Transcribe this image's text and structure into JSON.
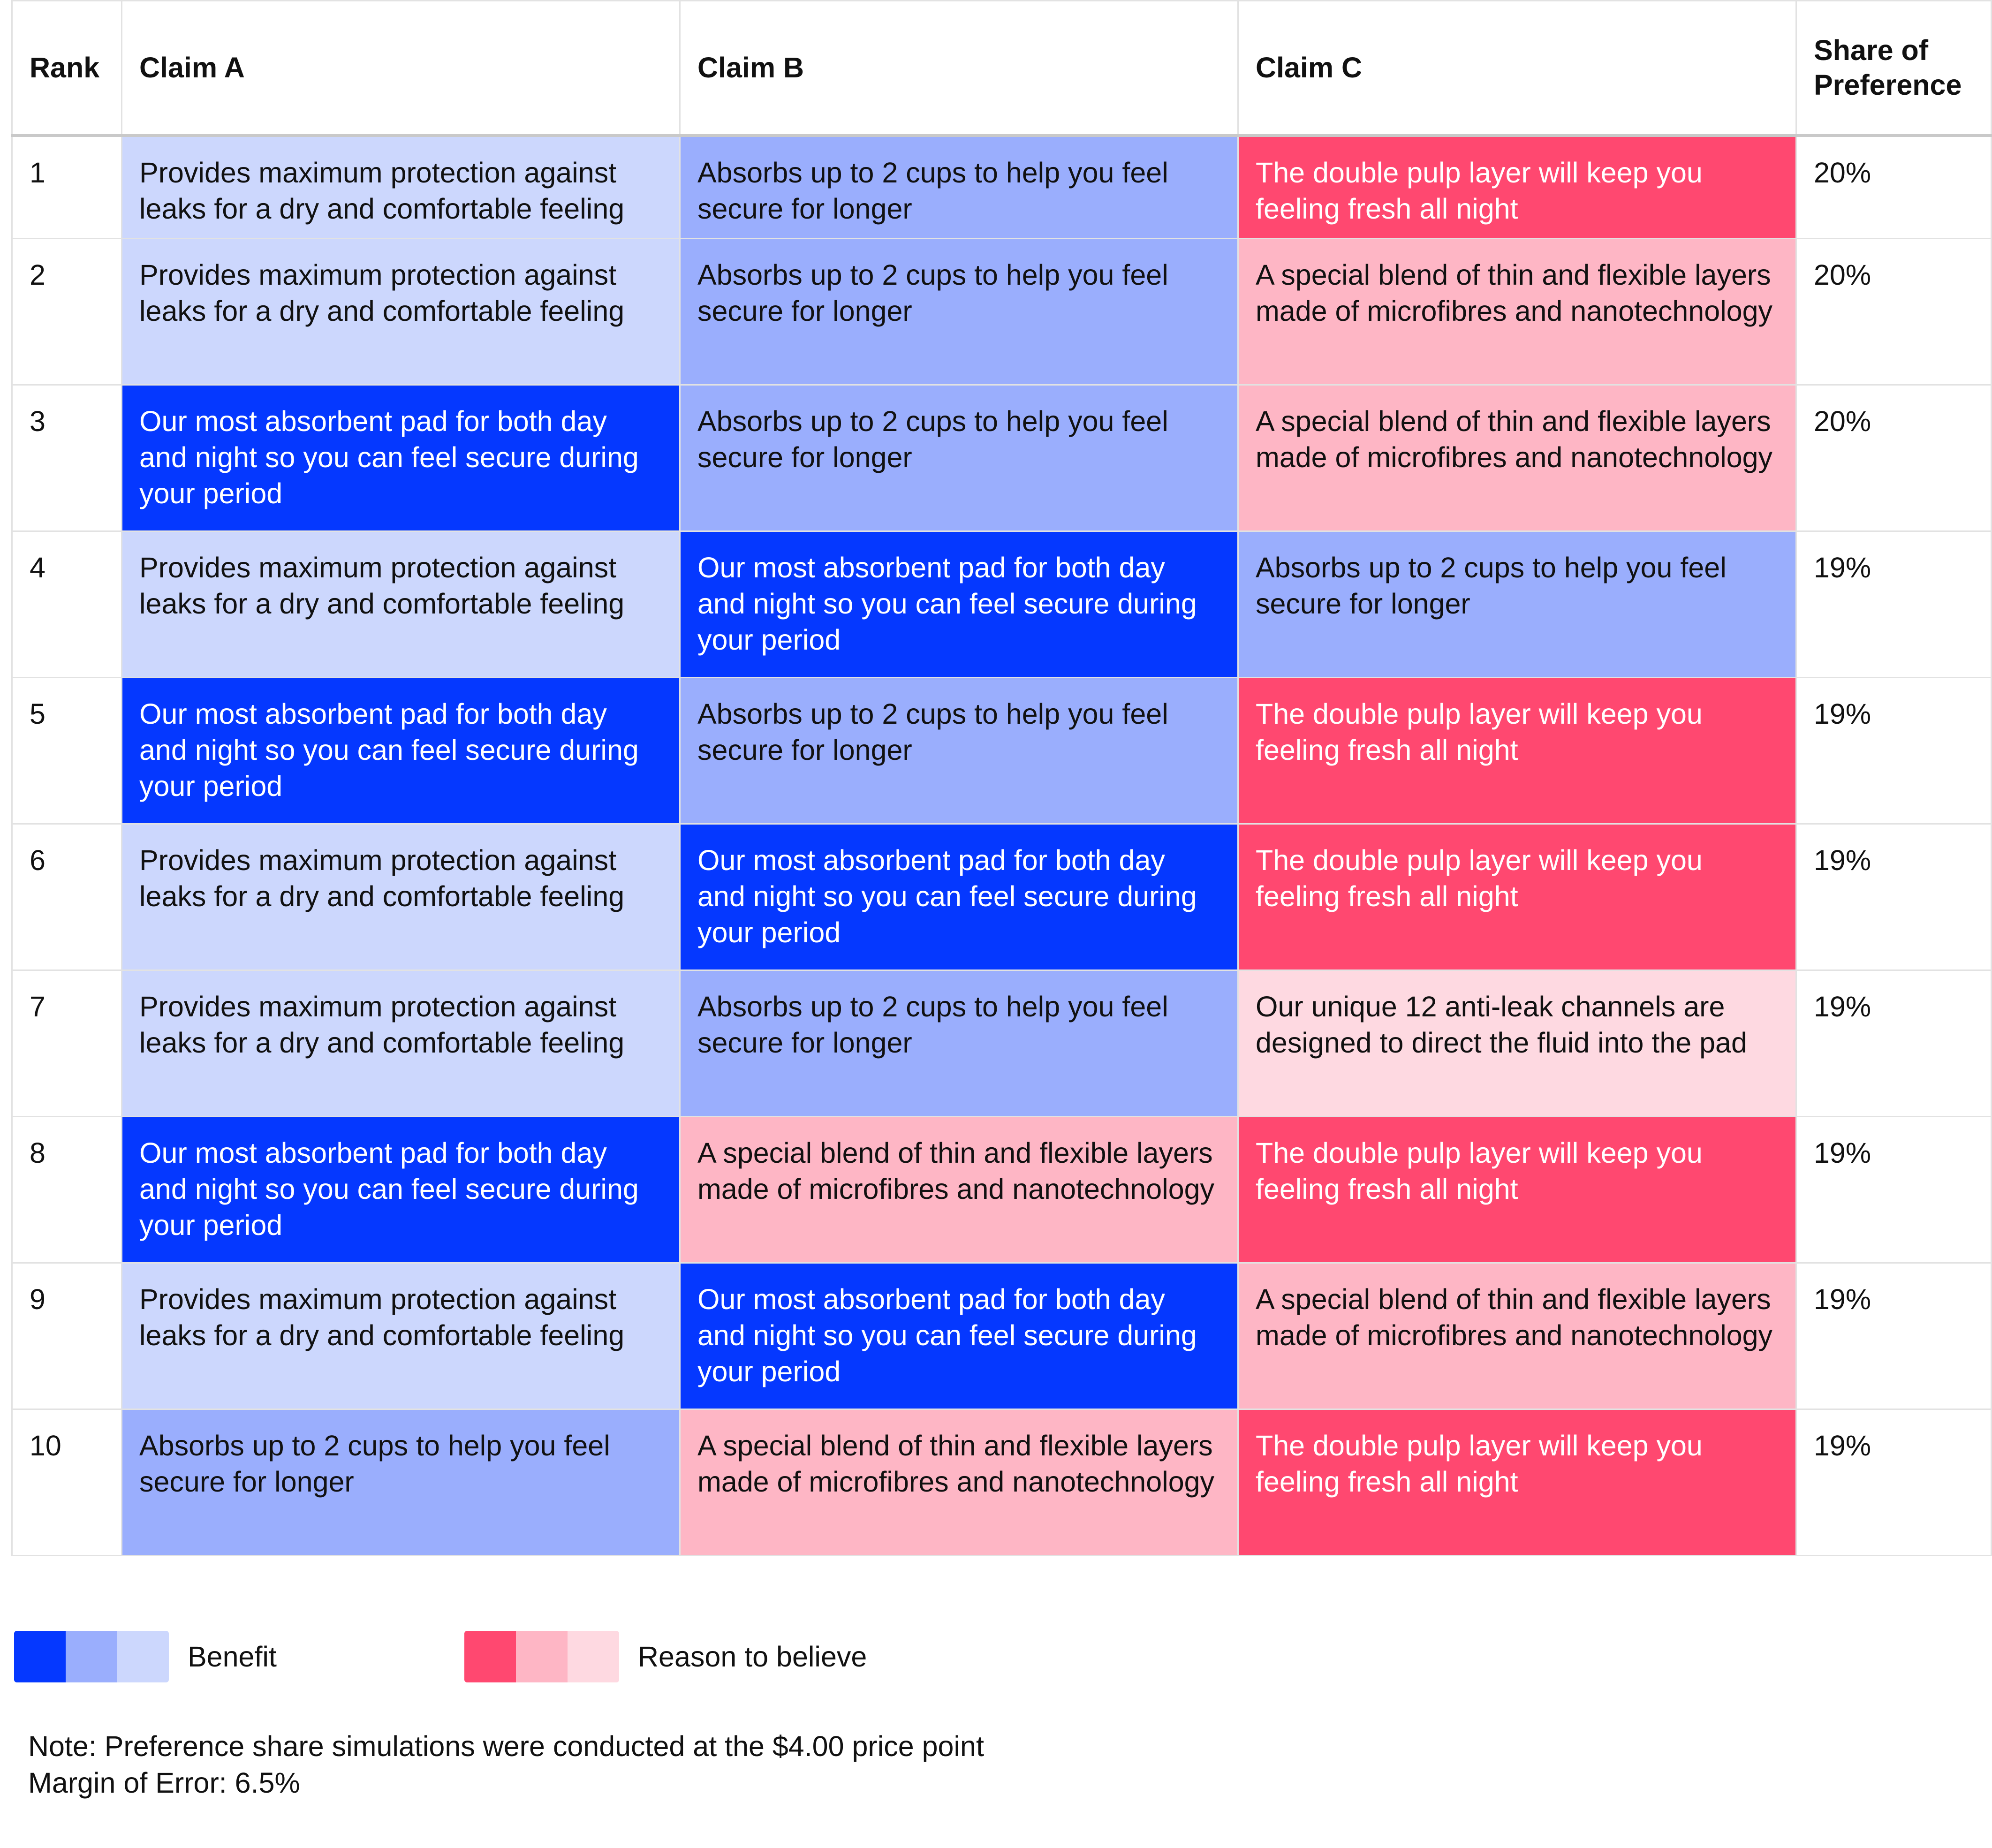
{
  "chart_data": {
    "type": "table",
    "columns": [
      "Rank",
      "Claim A",
      "Claim B",
      "Claim C",
      "Share of Preference"
    ],
    "colors": {
      "benefit_dark": "#0538FF",
      "benefit_mid": "#9AAEFD",
      "benefit_light": "#CCD7FD",
      "rtb_dark": "#FF4870",
      "rtb_mid": "#FEB6C5",
      "rtb_light": "#FED9E1"
    },
    "rows": [
      {
        "rank": "1",
        "share": "20%",
        "cells": [
          {
            "text": "Provides maximum protection against leaks for a dry and comfortable feeling",
            "color": "#CCD7FD",
            "text_color": "#111111"
          },
          {
            "text": "Absorbs up to 2 cups to help you feel secure for longer",
            "color": "#9AAEFD",
            "text_color": "#111111"
          },
          {
            "text": "The double pulp layer will keep you feeling fresh all night",
            "color": "#FF4870",
            "text_color": "#ffffff"
          }
        ]
      },
      {
        "rank": "2",
        "share": "20%",
        "cells": [
          {
            "text": "Provides maximum protection against leaks for a dry and comfortable feeling",
            "color": "#CCD7FD",
            "text_color": "#111111"
          },
          {
            "text": "Absorbs up to 2 cups to help you feel secure for longer",
            "color": "#9AAEFD",
            "text_color": "#111111"
          },
          {
            "text": "A special blend of thin and flexible layers made of microfibres and nanotechnology",
            "color": "#FEB6C5",
            "text_color": "#111111"
          }
        ]
      },
      {
        "rank": "3",
        "share": "20%",
        "cells": [
          {
            "text": "Our most absorbent pad for both day and night so you can feel secure during your period",
            "color": "#0538FF",
            "text_color": "#ffffff"
          },
          {
            "text": "Absorbs up to 2 cups to help you feel secure for longer",
            "color": "#9AAEFD",
            "text_color": "#111111"
          },
          {
            "text": "A special blend of thin and flexible layers made of microfibres and nanotechnology",
            "color": "#FEB6C5",
            "text_color": "#111111"
          }
        ]
      },
      {
        "rank": "4",
        "share": "19%",
        "cells": [
          {
            "text": "Provides maximum protection against leaks for a dry and comfortable feeling",
            "color": "#CCD7FD",
            "text_color": "#111111"
          },
          {
            "text": "Our most absorbent pad for both day and night so you can feel secure during your period",
            "color": "#0538FF",
            "text_color": "#ffffff"
          },
          {
            "text": "Absorbs up to 2 cups to help you feel secure for longer",
            "color": "#9AAEFD",
            "text_color": "#111111"
          }
        ]
      },
      {
        "rank": "5",
        "share": "19%",
        "cells": [
          {
            "text": "Our most absorbent pad for both day and night so you can feel secure during your period",
            "color": "#0538FF",
            "text_color": "#ffffff"
          },
          {
            "text": "Absorbs up to 2 cups to help you feel secure for longer",
            "color": "#9AAEFD",
            "text_color": "#111111"
          },
          {
            "text": "The double pulp layer will keep you feeling fresh all night",
            "color": "#FF4870",
            "text_color": "#ffffff"
          }
        ]
      },
      {
        "rank": "6",
        "share": "19%",
        "cells": [
          {
            "text": "Provides maximum protection against leaks for a dry and comfortable feeling",
            "color": "#CCD7FD",
            "text_color": "#111111"
          },
          {
            "text": "Our most absorbent pad for both day and night so you can feel secure during your period",
            "color": "#0538FF",
            "text_color": "#ffffff"
          },
          {
            "text": "The double pulp layer will keep you feeling fresh all night",
            "color": "#FF4870",
            "text_color": "#ffffff"
          }
        ]
      },
      {
        "rank": "7",
        "share": "19%",
        "cells": [
          {
            "text": "Provides maximum protection against leaks for a dry and comfortable feeling",
            "color": "#CCD7FD",
            "text_color": "#111111"
          },
          {
            "text": "Absorbs up to 2 cups to help you feel secure for longer",
            "color": "#9AAEFD",
            "text_color": "#111111"
          },
          {
            "text": "Our unique 12 anti-leak channels are designed to direct the fluid into the pad",
            "color": "#FED9E1",
            "text_color": "#111111"
          }
        ]
      },
      {
        "rank": "8",
        "share": "19%",
        "cells": [
          {
            "text": "Our most absorbent pad for both day and night so you can feel secure during your period",
            "color": "#0538FF",
            "text_color": "#ffffff"
          },
          {
            "text": "A special blend of thin and flexible layers made of microfibres and nanotechnology",
            "color": "#FEB6C5",
            "text_color": "#111111"
          },
          {
            "text": "The double pulp layer will keep you feeling fresh all night",
            "color": "#FF4870",
            "text_color": "#ffffff"
          }
        ]
      },
      {
        "rank": "9",
        "share": "19%",
        "cells": [
          {
            "text": "Provides maximum protection against leaks for a dry and comfortable feeling",
            "color": "#CCD7FD",
            "text_color": "#111111"
          },
          {
            "text": "Our most absorbent pad for both day and night so you can feel secure during your period",
            "color": "#0538FF",
            "text_color": "#ffffff"
          },
          {
            "text": "A special blend of thin and flexible layers made of microfibres and nanotechnology",
            "color": "#FEB6C5",
            "text_color": "#111111"
          }
        ]
      },
      {
        "rank": "10",
        "share": "19%",
        "cells": [
          {
            "text": "Absorbs up to 2 cups to help you feel secure for longer",
            "color": "#9AAEFD",
            "text_color": "#111111"
          },
          {
            "text": "A special blend of thin and flexible layers made of microfibres and nanotechnology",
            "color": "#FEB6C5",
            "text_color": "#111111"
          },
          {
            "text": "The double pulp layer will keep you feeling fresh all night",
            "color": "#FF4870",
            "text_color": "#ffffff"
          }
        ]
      }
    ]
  },
  "legend": {
    "benefit_label": "Benefit",
    "benefit_colors": [
      "#0538FF",
      "#9AAEFD",
      "#CCD7FD"
    ],
    "rtb_label": "Reason to believe",
    "rtb_colors": [
      "#FF4870",
      "#FEB6C5",
      "#FED9E1"
    ]
  },
  "notes": {
    "note": "Note: Preference share simulations were conducted at the $4.00 price point",
    "margin_of_error": "Margin of Error: 6.5%"
  }
}
